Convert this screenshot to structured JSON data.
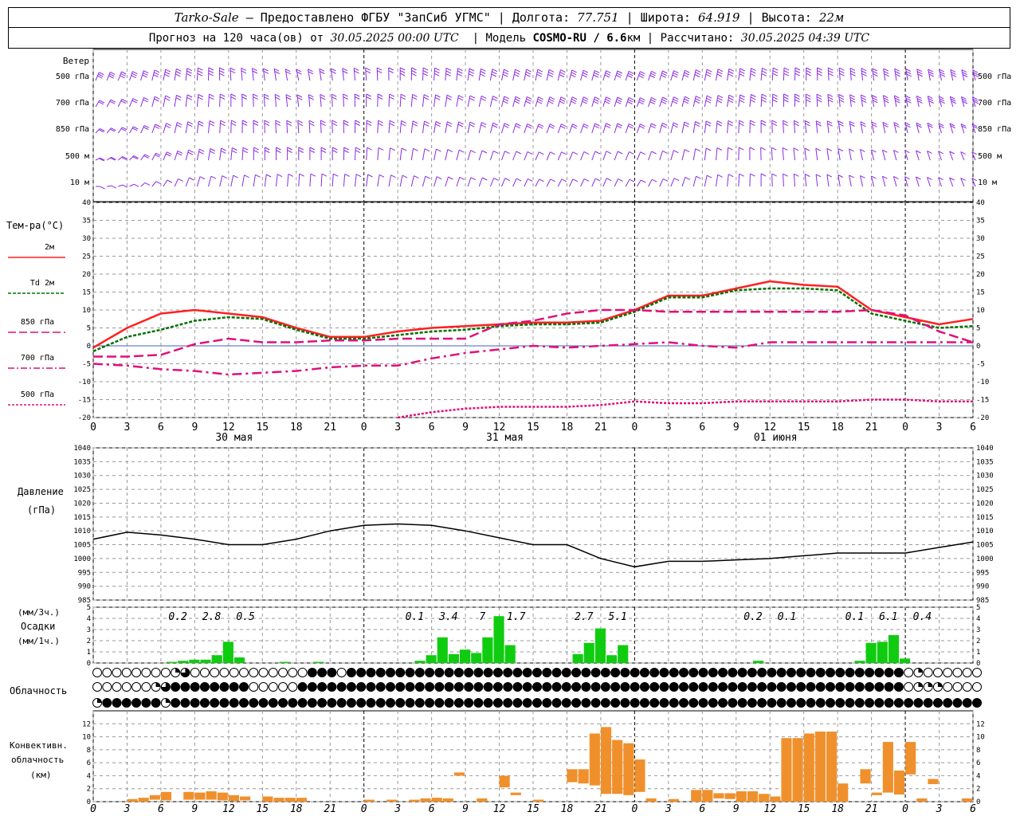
{
  "header": {
    "station": "Tarko-Sale",
    "provider": " – Предоставлено ФГБУ \"ЗапСиб УГМС\" | Долгота: ",
    "lon": "77.751",
    "lat_label": " | Широта: ",
    "lat": "64.919",
    "alt_label": " | Высота: ",
    "alt": "22м",
    "forecast_label": "Прогноз на 120 часа(ов) от ",
    "forecast_from": "30.05.2025 00:00 UTC",
    "model_label": "  | Модель ",
    "model": "COSMO-RU / 6.6",
    "model_unit": "км",
    "calc_label": " | Рассчитано: ",
    "calc_time": "30.05.2025 04:39 UTC"
  },
  "labels": {
    "wind": "Ветер",
    "wind_levels": [
      "500 гПа",
      "700 гПа",
      "850 гПа",
      "500 м",
      "10  м"
    ],
    "temp_title": "Тем-ра(°C)",
    "temp_legend": [
      {
        "text": "2м",
        "color": "#ff2020",
        "dash": ""
      },
      {
        "text": "Td  2м",
        "color": "#007000",
        "dash": "4,2"
      },
      {
        "text": "850 гПа",
        "color": "#e0107a",
        "dash": "10,4"
      },
      {
        "text": "700 гПа",
        "color": "#e0107a",
        "dash": "8,3,2,3"
      },
      {
        "text": "500 гПа",
        "color": "#e0107a",
        "dash": "3,2"
      }
    ],
    "pressure_title": "Давление",
    "pressure_unit": "(гПа)",
    "precip_top": "(мм/3ч.)",
    "precip_title": "Осадки",
    "precip_unit": "(мм/1ч.)",
    "clouds_title": "Облачность",
    "conv_l1": "Конвективн.",
    "conv_l2": "облачность",
    "conv_l3": "(км)"
  },
  "chart_data": {
    "type": "line",
    "x_hours": [
      0,
      3,
      6,
      9,
      12,
      15,
      18,
      21,
      24,
      27,
      30,
      33,
      36,
      39,
      42,
      45,
      48,
      51,
      54,
      57,
      60,
      63,
      66,
      69,
      72,
      75,
      78
    ],
    "x_tick_labels": [
      "0",
      "3",
      "6",
      "9",
      "12",
      "15",
      "18",
      "21",
      "0",
      "3",
      "6",
      "9",
      "12",
      "15",
      "18",
      "21",
      "0",
      "3",
      "6",
      "9",
      "12",
      "15",
      "18",
      "21",
      "0",
      "3",
      "6"
    ],
    "dates": [
      {
        "hour": 12,
        "label": "30 мая"
      },
      {
        "hour": 36,
        "label": "31 мая"
      },
      {
        "hour": 60,
        "label": "01 июня"
      }
    ],
    "temperature": {
      "ylim": [
        -20,
        40
      ],
      "yticks": [
        40,
        35,
        30,
        25,
        20,
        15,
        10,
        5,
        0,
        -5,
        -10,
        -15,
        -20
      ],
      "series": [
        {
          "name": "2м",
          "color": "#ff2020",
          "values": [
            -0.5,
            5,
            9,
            10,
            9,
            8,
            5,
            2.5,
            2.5,
            4,
            5,
            5.5,
            6,
            6.5,
            6.5,
            7,
            10,
            14,
            14,
            16,
            18,
            17,
            16.5,
            10,
            8,
            6,
            7.5
          ]
        },
        {
          "name": "Td 2м",
          "color": "#007000",
          "values": [
            -1.5,
            2.5,
            4.5,
            7,
            8,
            7.5,
            4.5,
            2,
            2,
            3,
            4,
            4.5,
            5.5,
            6,
            6,
            6.5,
            9.5,
            13.5,
            13.5,
            15.5,
            16,
            16,
            15.5,
            9,
            7,
            5,
            5.5
          ]
        },
        {
          "name": "850 гПа",
          "color": "#e0107a",
          "values": [
            -3,
            -3,
            -2.5,
            0.5,
            2,
            1,
            1,
            1.5,
            1.5,
            2,
            2,
            2,
            6,
            7,
            9,
            10,
            10,
            9.5,
            9.5,
            9.5,
            9.5,
            9.5,
            9.5,
            10,
            8.5,
            4,
            1
          ]
        },
        {
          "name": "700 гПа",
          "color": "#e0107a",
          "values": [
            -5,
            -5.5,
            -6.5,
            -7,
            -8,
            -7.5,
            -7,
            -6,
            -5.5,
            -5.5,
            -3.5,
            -2,
            -1,
            0,
            -0.5,
            0,
            0.5,
            1,
            0,
            -0.5,
            1,
            1,
            1,
            1,
            1,
            1,
            1
          ]
        },
        {
          "name": "500 гПа",
          "color": "#e0107a",
          "values": [
            null,
            null,
            null,
            null,
            null,
            null,
            null,
            null,
            null,
            -20,
            -18.5,
            -17.5,
            -17,
            -17,
            -17,
            -16.5,
            -15.5,
            -16,
            -16,
            -15.5,
            -15.5,
            -15.5,
            -15.5,
            -15,
            -15,
            -15.5,
            -15.5
          ]
        }
      ]
    },
    "pressure": {
      "ylim": [
        985,
        1040
      ],
      "yticks": [
        1040,
        1035,
        1030,
        1025,
        1020,
        1015,
        1010,
        1005,
        1000,
        995,
        990,
        985
      ],
      "values": [
        1007,
        1009.5,
        1008.5,
        1007,
        1005,
        1005,
        1007,
        1010,
        1012,
        1012.5,
        1012,
        1010,
        1007.5,
        1005,
        1005,
        1000,
        997,
        999,
        999,
        999.5,
        1000,
        1001,
        1002,
        1002,
        1002,
        1004,
        1006
      ]
    },
    "precip_hourly": {
      "ylim": [
        0,
        5
      ],
      "values": [
        [
          7,
          0.1
        ],
        [
          8,
          0.2
        ],
        [
          9,
          0.3
        ],
        [
          10,
          0.3
        ],
        [
          11,
          0.7
        ],
        [
          12,
          1.9
        ],
        [
          13,
          0.5
        ],
        [
          17,
          0.1
        ],
        [
          20,
          0.1
        ],
        [
          29,
          0.2
        ],
        [
          30,
          0.7
        ],
        [
          31,
          2.3
        ],
        [
          32,
          0.8
        ],
        [
          33,
          1.2
        ],
        [
          34,
          0.9
        ],
        [
          35,
          2.3
        ],
        [
          36,
          4.2
        ],
        [
          37,
          1.6
        ],
        [
          43,
          0.8
        ],
        [
          44,
          1.8
        ],
        [
          45,
          3.1
        ],
        [
          46,
          0.7
        ],
        [
          47,
          1.6
        ],
        [
          59,
          0.2
        ],
        [
          68,
          0.2
        ],
        [
          69,
          1.8
        ],
        [
          70,
          1.9
        ],
        [
          71,
          2.5
        ],
        [
          72,
          0.4
        ]
      ]
    },
    "precip_3h_labels": [
      {
        "hour": 7.5,
        "text": "0.2"
      },
      {
        "hour": 10.5,
        "text": "2.8"
      },
      {
        "hour": 13.5,
        "text": "0.5"
      },
      {
        "hour": 28.5,
        "text": "0.1"
      },
      {
        "hour": 31.5,
        "text": "3.4"
      },
      {
        "hour": 34.5,
        "text": "7"
      },
      {
        "hour": 37.5,
        "text": "1.7"
      },
      {
        "hour": 43.5,
        "text": "2.7"
      },
      {
        "hour": 46.5,
        "text": "5.1"
      },
      {
        "hour": 58.5,
        "text": "0.2"
      },
      {
        "hour": 61.5,
        "text": "0.1"
      },
      {
        "hour": 67.5,
        "text": "0.1"
      },
      {
        "hour": 70.5,
        "text": "6.1"
      },
      {
        "hour": 73.5,
        "text": "0.4"
      }
    ],
    "cloud_rows": [
      "0000000012000000000000333033333333333333333333333333333333333333333333333333333333301000000",
      "0000001233333333000003333333333333333333333333333333333333333333333333333333333333301110000",
      "1333333133333333333333333333333333333333333333333333333333333333333333333333333333333333333"
    ],
    "convective": {
      "ylim": [
        0,
        13
      ],
      "yticks": [
        12,
        10,
        8,
        6,
        4,
        2,
        0
      ],
      "values": [
        [
          3,
          0,
          0.4
        ],
        [
          4,
          0,
          0.6
        ],
        [
          5,
          0.3,
          1
        ],
        [
          6,
          0.2,
          1.5
        ],
        [
          8,
          0.3,
          1.5
        ],
        [
          9,
          0.3,
          1.4
        ],
        [
          10,
          0.3,
          1.6
        ],
        [
          11,
          0.2,
          1.4
        ],
        [
          12,
          0.1,
          1
        ],
        [
          13,
          0.2,
          0.8
        ],
        [
          15,
          0,
          0.8
        ],
        [
          16,
          0,
          0.6
        ],
        [
          17,
          0,
          0.6
        ],
        [
          18,
          0,
          0.6
        ],
        [
          24,
          0,
          0.3
        ],
        [
          26,
          0,
          0.3
        ],
        [
          28,
          0,
          0.3
        ],
        [
          29,
          0,
          0.5
        ],
        [
          30,
          0,
          0.6
        ],
        [
          31,
          0,
          0.5
        ],
        [
          32,
          4,
          4.5
        ],
        [
          34,
          0,
          0.5
        ],
        [
          36,
          2.2,
          4
        ],
        [
          37,
          1,
          1.4
        ],
        [
          39,
          0,
          0.3
        ],
        [
          42,
          3,
          5
        ],
        [
          43,
          2.8,
          5
        ],
        [
          44,
          2.5,
          10.5
        ],
        [
          45,
          1.2,
          11.5
        ],
        [
          46,
          1.2,
          9.5
        ],
        [
          47,
          1,
          9
        ],
        [
          48,
          1.5,
          6.5
        ],
        [
          49,
          0,
          0.5
        ],
        [
          51,
          0,
          0.4
        ],
        [
          53,
          0,
          1.8
        ],
        [
          54,
          0,
          1.8
        ],
        [
          55,
          0.5,
          1.3
        ],
        [
          56,
          0.4,
          1.3
        ],
        [
          57,
          0,
          1.6
        ],
        [
          58,
          0,
          1.6
        ],
        [
          59,
          0,
          1.2
        ],
        [
          60,
          0,
          0.8
        ],
        [
          61,
          0,
          9.8
        ],
        [
          62,
          0,
          9.8
        ],
        [
          63,
          0,
          10.5
        ],
        [
          64,
          0,
          10.8
        ],
        [
          65,
          0,
          10.8
        ],
        [
          66,
          0,
          2.8
        ],
        [
          68,
          2.8,
          5
        ],
        [
          69,
          1,
          1.4
        ],
        [
          70,
          1.4,
          9.2
        ],
        [
          71,
          1.1,
          4.8
        ],
        [
          72,
          4.2,
          9.2
        ],
        [
          73,
          0,
          0.5
        ],
        [
          74,
          2.7,
          3.5
        ],
        [
          77,
          0,
          0.5
        ]
      ]
    },
    "wind_rows": [
      {
        "ydir": [
          40,
          45,
          60,
          80,
          100,
          110,
          120,
          110,
          100,
          90,
          80,
          70,
          60,
          60,
          55,
          50,
          45,
          50,
          60,
          70,
          80,
          90,
          100,
          110,
          115,
          120,
          125
        ],
        "speed": [
          3,
          3,
          3,
          3,
          2,
          2,
          2,
          2,
          2,
          3,
          3,
          3,
          3,
          3,
          3,
          3,
          3,
          3,
          3,
          3,
          3,
          3,
          3,
          3,
          3,
          3,
          3
        ]
      },
      {
        "ydir": [
          30,
          40,
          60,
          75,
          90,
          100,
          110,
          100,
          90,
          80,
          70,
          60,
          55,
          50,
          50,
          50,
          45,
          50,
          60,
          70,
          85,
          95,
          105,
          115,
          120,
          125,
          130
        ],
        "speed": [
          2,
          2,
          2,
          2,
          2,
          2,
          2,
          2,
          2,
          2,
          2,
          2,
          3,
          3,
          3,
          3,
          3,
          3,
          3,
          3,
          3,
          3,
          3,
          3,
          3,
          3,
          3
        ]
      },
      {
        "ydir": [
          20,
          30,
          50,
          70,
          85,
          95,
          100,
          95,
          85,
          75,
          65,
          60,
          50,
          45,
          45,
          50,
          45,
          55,
          70,
          80,
          95,
          105,
          110,
          120,
          125,
          130,
          135
        ],
        "speed": [
          2,
          2,
          2,
          2,
          2,
          2,
          2,
          2,
          2,
          2,
          2,
          2,
          2,
          2,
          2,
          2,
          2,
          2,
          2,
          2,
          2,
          2,
          2,
          2,
          2,
          2,
          2
        ]
      },
      {
        "ydir": [
          10,
          20,
          40,
          60,
          75,
          90,
          90,
          90,
          80,
          70,
          60,
          50,
          45,
          40,
          40,
          45,
          40,
          50,
          70,
          85,
          100,
          110,
          115,
          125,
          130,
          135,
          140
        ],
        "speed": [
          2,
          2,
          2,
          2,
          2,
          2,
          2,
          2,
          1,
          1,
          1,
          1,
          1,
          1,
          1,
          1,
          1,
          1,
          1,
          1,
          1,
          1,
          1,
          1,
          1,
          1,
          1
        ]
      },
      {
        "ydir": [
          0,
          10,
          30,
          50,
          60,
          70,
          80,
          80,
          70,
          60,
          50,
          45,
          40,
          35,
          35,
          40,
          30,
          40,
          60,
          80,
          95,
          105,
          115,
          125,
          130,
          135,
          140
        ],
        "speed": [
          1,
          1,
          1,
          1,
          1,
          1,
          1,
          1,
          1,
          1,
          1,
          1,
          1,
          1,
          1,
          1,
          1,
          1,
          1,
          1,
          1,
          1,
          1,
          1,
          1,
          1,
          1
        ]
      }
    ],
    "colors": {
      "wind": "#8a2be2",
      "precip": "#10cc10",
      "convective": "#f0902c",
      "grid": "#999999"
    }
  }
}
